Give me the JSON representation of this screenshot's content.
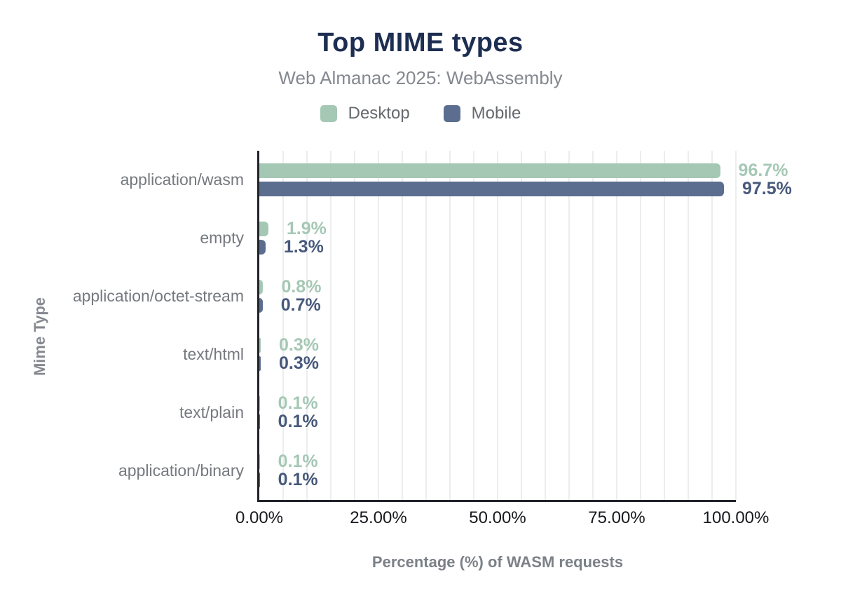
{
  "header": {
    "title": "Top MIME types",
    "subtitle": "Web Almanac 2025: WebAssembly"
  },
  "legend": [
    {
      "label": "Desktop",
      "color": "#a5c8b5"
    },
    {
      "label": "Mobile",
      "color": "#5b6e90"
    }
  ],
  "chart_data": {
    "type": "bar",
    "orientation": "horizontal",
    "title": "Top MIME types",
    "subtitle": "Web Almanac 2025: WebAssembly",
    "categories": [
      "application/wasm",
      "empty",
      "application/octet-stream",
      "text/html",
      "text/plain",
      "application/binary"
    ],
    "series": [
      {
        "name": "Desktop",
        "color": "#a5c8b5",
        "label_color": "#a5c8b5",
        "values": [
          96.7,
          1.9,
          0.8,
          0.3,
          0.1,
          0.1
        ],
        "labels": [
          "96.7%",
          "1.9%",
          "0.8%",
          "0.3%",
          "0.1%",
          "0.1%"
        ]
      },
      {
        "name": "Mobile",
        "color": "#5b6e90",
        "label_color": "#47597b",
        "values": [
          97.5,
          1.3,
          0.7,
          0.3,
          0.1,
          0.1
        ],
        "labels": [
          "97.5%",
          "1.3%",
          "0.7%",
          "0.3%",
          "0.1%",
          "0.1%"
        ]
      }
    ],
    "xlabel": "Percentage (%) of WASM requests",
    "ylabel": "Mime Type",
    "xlim": [
      0,
      100
    ],
    "x_ticks": [
      "0.00%",
      "25.00%",
      "50.00%",
      "75.00%",
      "100.00%"
    ],
    "x_tick_values": [
      0,
      25,
      50,
      75,
      100
    ],
    "grid_step_percent": 5,
    "grid": "vertical-only",
    "legend_position": "top-center",
    "colors": {
      "title": "#1d2e52",
      "subtitle": "#84888f",
      "axis_line": "#212429",
      "gridline": "#ebedee",
      "tick_label": "#17191d",
      "category_label": "#75797f",
      "axis_title": "#7c8188"
    }
  }
}
